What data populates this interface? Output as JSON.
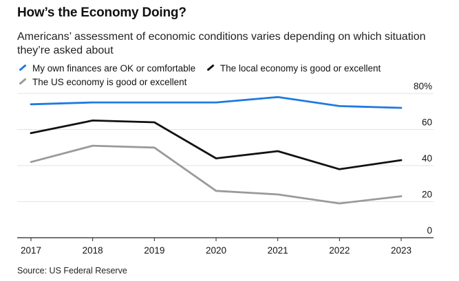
{
  "title": "How’s the Economy Doing?",
  "subtitle": "Americans’ assessment of economic conditions varies depending on which situation they’re asked about",
  "source": "Source: US Federal Reserve",
  "chart_data": {
    "type": "line",
    "title": "How’s the Economy Doing?",
    "subtitle": "Americans’ assessment of economic conditions varies depending on which situation they’re asked about",
    "x": [
      "2017",
      "2018",
      "2019",
      "2020",
      "2021",
      "2022",
      "2023"
    ],
    "series": [
      {
        "name": "My own finances are OK or comfortable",
        "color": "#1f7ae0",
        "values": [
          74,
          75,
          75,
          75,
          78,
          73,
          72
        ]
      },
      {
        "name": "The local economy is good or excellent",
        "color": "#111111",
        "values": [
          58,
          65,
          64,
          44,
          48,
          38,
          43
        ]
      },
      {
        "name": "The US economy is good or excellent",
        "color": "#9a9a9a",
        "values": [
          42,
          51,
          50,
          26,
          24,
          19,
          23
        ]
      }
    ],
    "ylim": [
      0,
      80
    ],
    "yticks": [
      0,
      20,
      40,
      60,
      80
    ],
    "ytick_labels": [
      "0",
      "20",
      "40",
      "60",
      "80%"
    ],
    "xlabel": "",
    "ylabel": "",
    "grid": true,
    "legend_position": "top"
  }
}
